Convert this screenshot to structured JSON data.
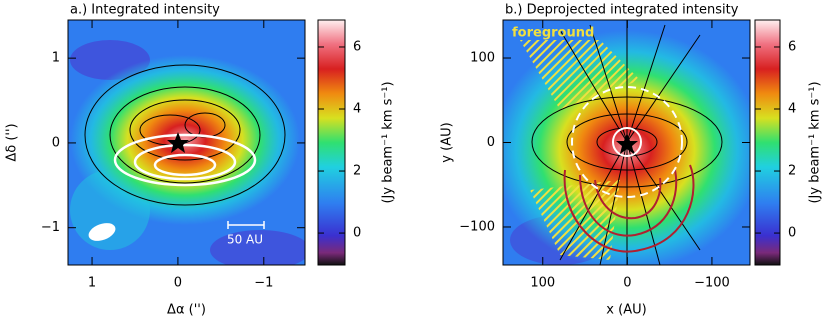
{
  "chart_data": [
    {
      "type": "heatmap",
      "title": "a.) Integrated intensity",
      "x_label": "Δα ('')",
      "y_label": "Δδ ('')",
      "xlim": [
        1.28,
        -1.48
      ],
      "xticks": [
        1,
        0,
        {
          "value": -1,
          "label": "−1"
        }
      ],
      "ylim": [
        -1.44,
        1.45
      ],
      "yticks": [
        {
          "value": -1,
          "label": "−1"
        },
        0,
        1
      ],
      "colorbar": {
        "lim": [
          -1.03,
          6.87
        ],
        "ticks": [
          0,
          2,
          4,
          6
        ],
        "label": "(Jy beam⁻¹ km s⁻¹)"
      },
      "annotations": [
        "50 AU"
      ]
    },
    {
      "type": "heatmap",
      "title": "b.) Deprojected integrated intensity",
      "x_label": "x (AU)",
      "y_label": "y (AU)",
      "xlim": [
        147,
        -145
      ],
      "xticks": [
        100,
        0,
        {
          "value": -100,
          "label": "−100"
        }
      ],
      "ylim": [
        -145,
        145
      ],
      "yticks": [
        {
          "value": -100,
          "label": "−100"
        },
        0,
        100
      ],
      "colorbar": {
        "lim": [
          -1.03,
          6.87
        ],
        "ticks": [
          0,
          2,
          4,
          6
        ],
        "label": "(Jy beam⁻¹ km s⁻¹)"
      },
      "annotations": [
        "foreground"
      ]
    }
  ]
}
